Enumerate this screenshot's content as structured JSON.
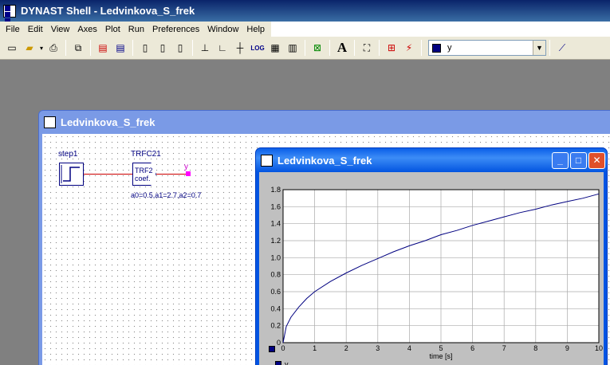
{
  "app": {
    "title": "DYNAST Shell - Ledvinkova_S_frek"
  },
  "menu": [
    "File",
    "Edit",
    "View",
    "Axes",
    "Plot",
    "Run",
    "Preferences",
    "Window",
    "Help"
  ],
  "toolbar": {
    "variable_combo": {
      "value": "y",
      "color": "#000080"
    }
  },
  "schematic": {
    "title": "Ledvinkova_S_frek",
    "blocks": {
      "step_label": "step1",
      "trf_label": "TRFC21",
      "trf_text1": "TRF2",
      "trf_text2": "coef.",
      "params": "a0=0.5,a1=2.7,a2=0.7",
      "output_label": "y"
    }
  },
  "graph": {
    "title": "Ledvinkova_S_frek",
    "legend": [
      {
        "name": "y",
        "color": "#000080"
      }
    ]
  },
  "chart_data": {
    "type": "line",
    "xlabel": "time [s]",
    "ylabel": "",
    "xlim": [
      0,
      10
    ],
    "ylim": [
      0,
      1.8
    ],
    "xticks": [
      0,
      1,
      2,
      3,
      4,
      5,
      6,
      7,
      8,
      9,
      10
    ],
    "yticks": [
      0,
      0.2,
      0.4,
      0.6,
      0.8,
      1.0,
      1.2,
      1.4,
      1.6,
      1.8
    ],
    "ytick_labels": [
      "0",
      "0.2",
      "0.4",
      "0.6",
      "0.8",
      "1.0",
      "1.2",
      "1.4",
      "1.6",
      "1.8"
    ],
    "grid": true,
    "series": [
      {
        "name": "y",
        "color": "#000080",
        "x": [
          0,
          0.1,
          0.25,
          0.5,
          0.75,
          1,
          1.5,
          2,
          2.5,
          3,
          3.5,
          4,
          4.5,
          5,
          5.5,
          6,
          6.5,
          7,
          7.5,
          8,
          8.5,
          9,
          9.5,
          10
        ],
        "y": [
          0,
          0.19,
          0.3,
          0.42,
          0.52,
          0.6,
          0.72,
          0.82,
          0.91,
          0.99,
          1.07,
          1.14,
          1.2,
          1.27,
          1.32,
          1.38,
          1.43,
          1.48,
          1.53,
          1.57,
          1.62,
          1.66,
          1.7,
          1.75
        ]
      }
    ]
  }
}
